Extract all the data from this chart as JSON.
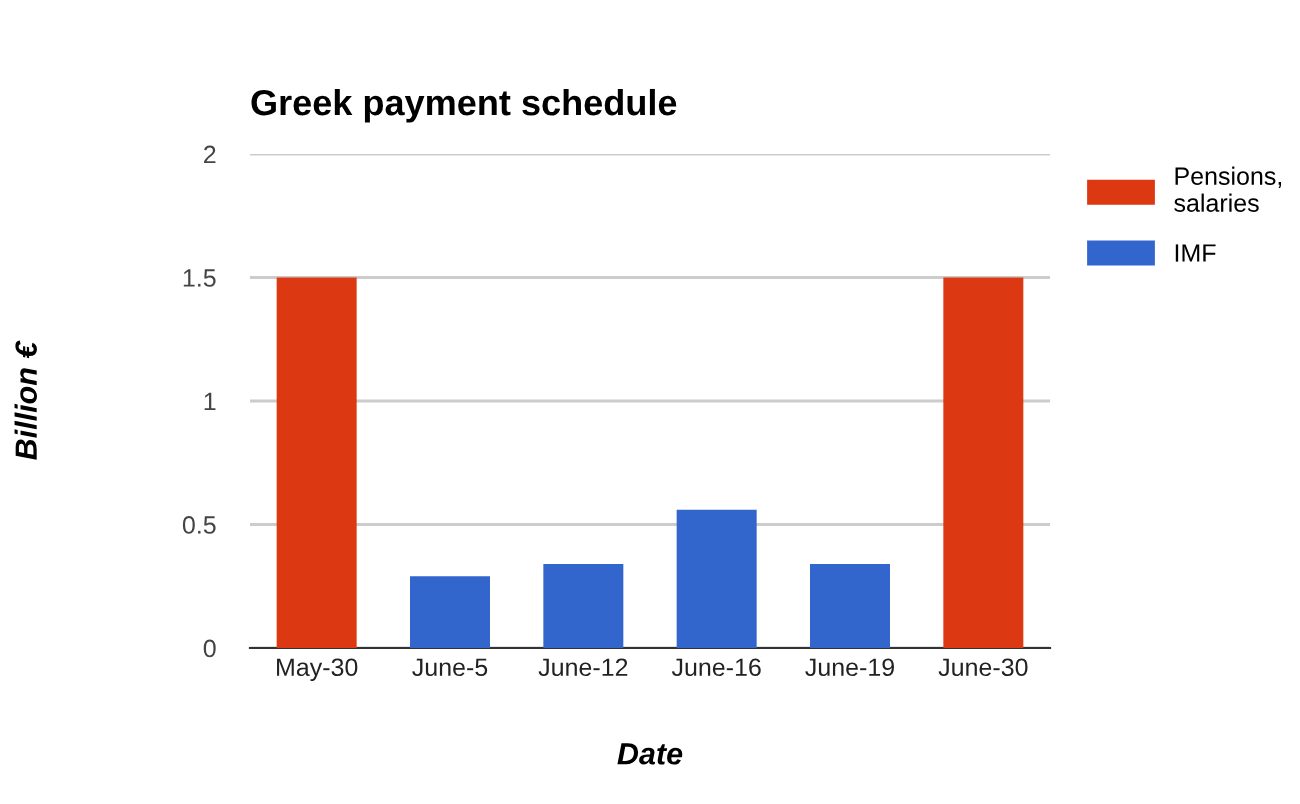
{
  "chart_data": {
    "type": "bar",
    "title": "Greek payment schedule",
    "xlabel": "Date",
    "ylabel": "Billion €",
    "categories": [
      "May-30",
      "June-5",
      "June-12",
      "June-16",
      "June-19",
      "June-30"
    ],
    "series": [
      {
        "name": "Pensions, salaries",
        "color": "#dc3912",
        "values": [
          1.5,
          null,
          null,
          null,
          null,
          1.5
        ]
      },
      {
        "name": "IMF",
        "color": "#3366cc",
        "values": [
          null,
          0.29,
          0.34,
          0.56,
          0.34,
          null
        ]
      }
    ],
    "ylim": [
      0,
      2
    ],
    "yticks": [
      0,
      0.5,
      1,
      1.5,
      2
    ],
    "grid": "y",
    "legend": "top right"
  }
}
